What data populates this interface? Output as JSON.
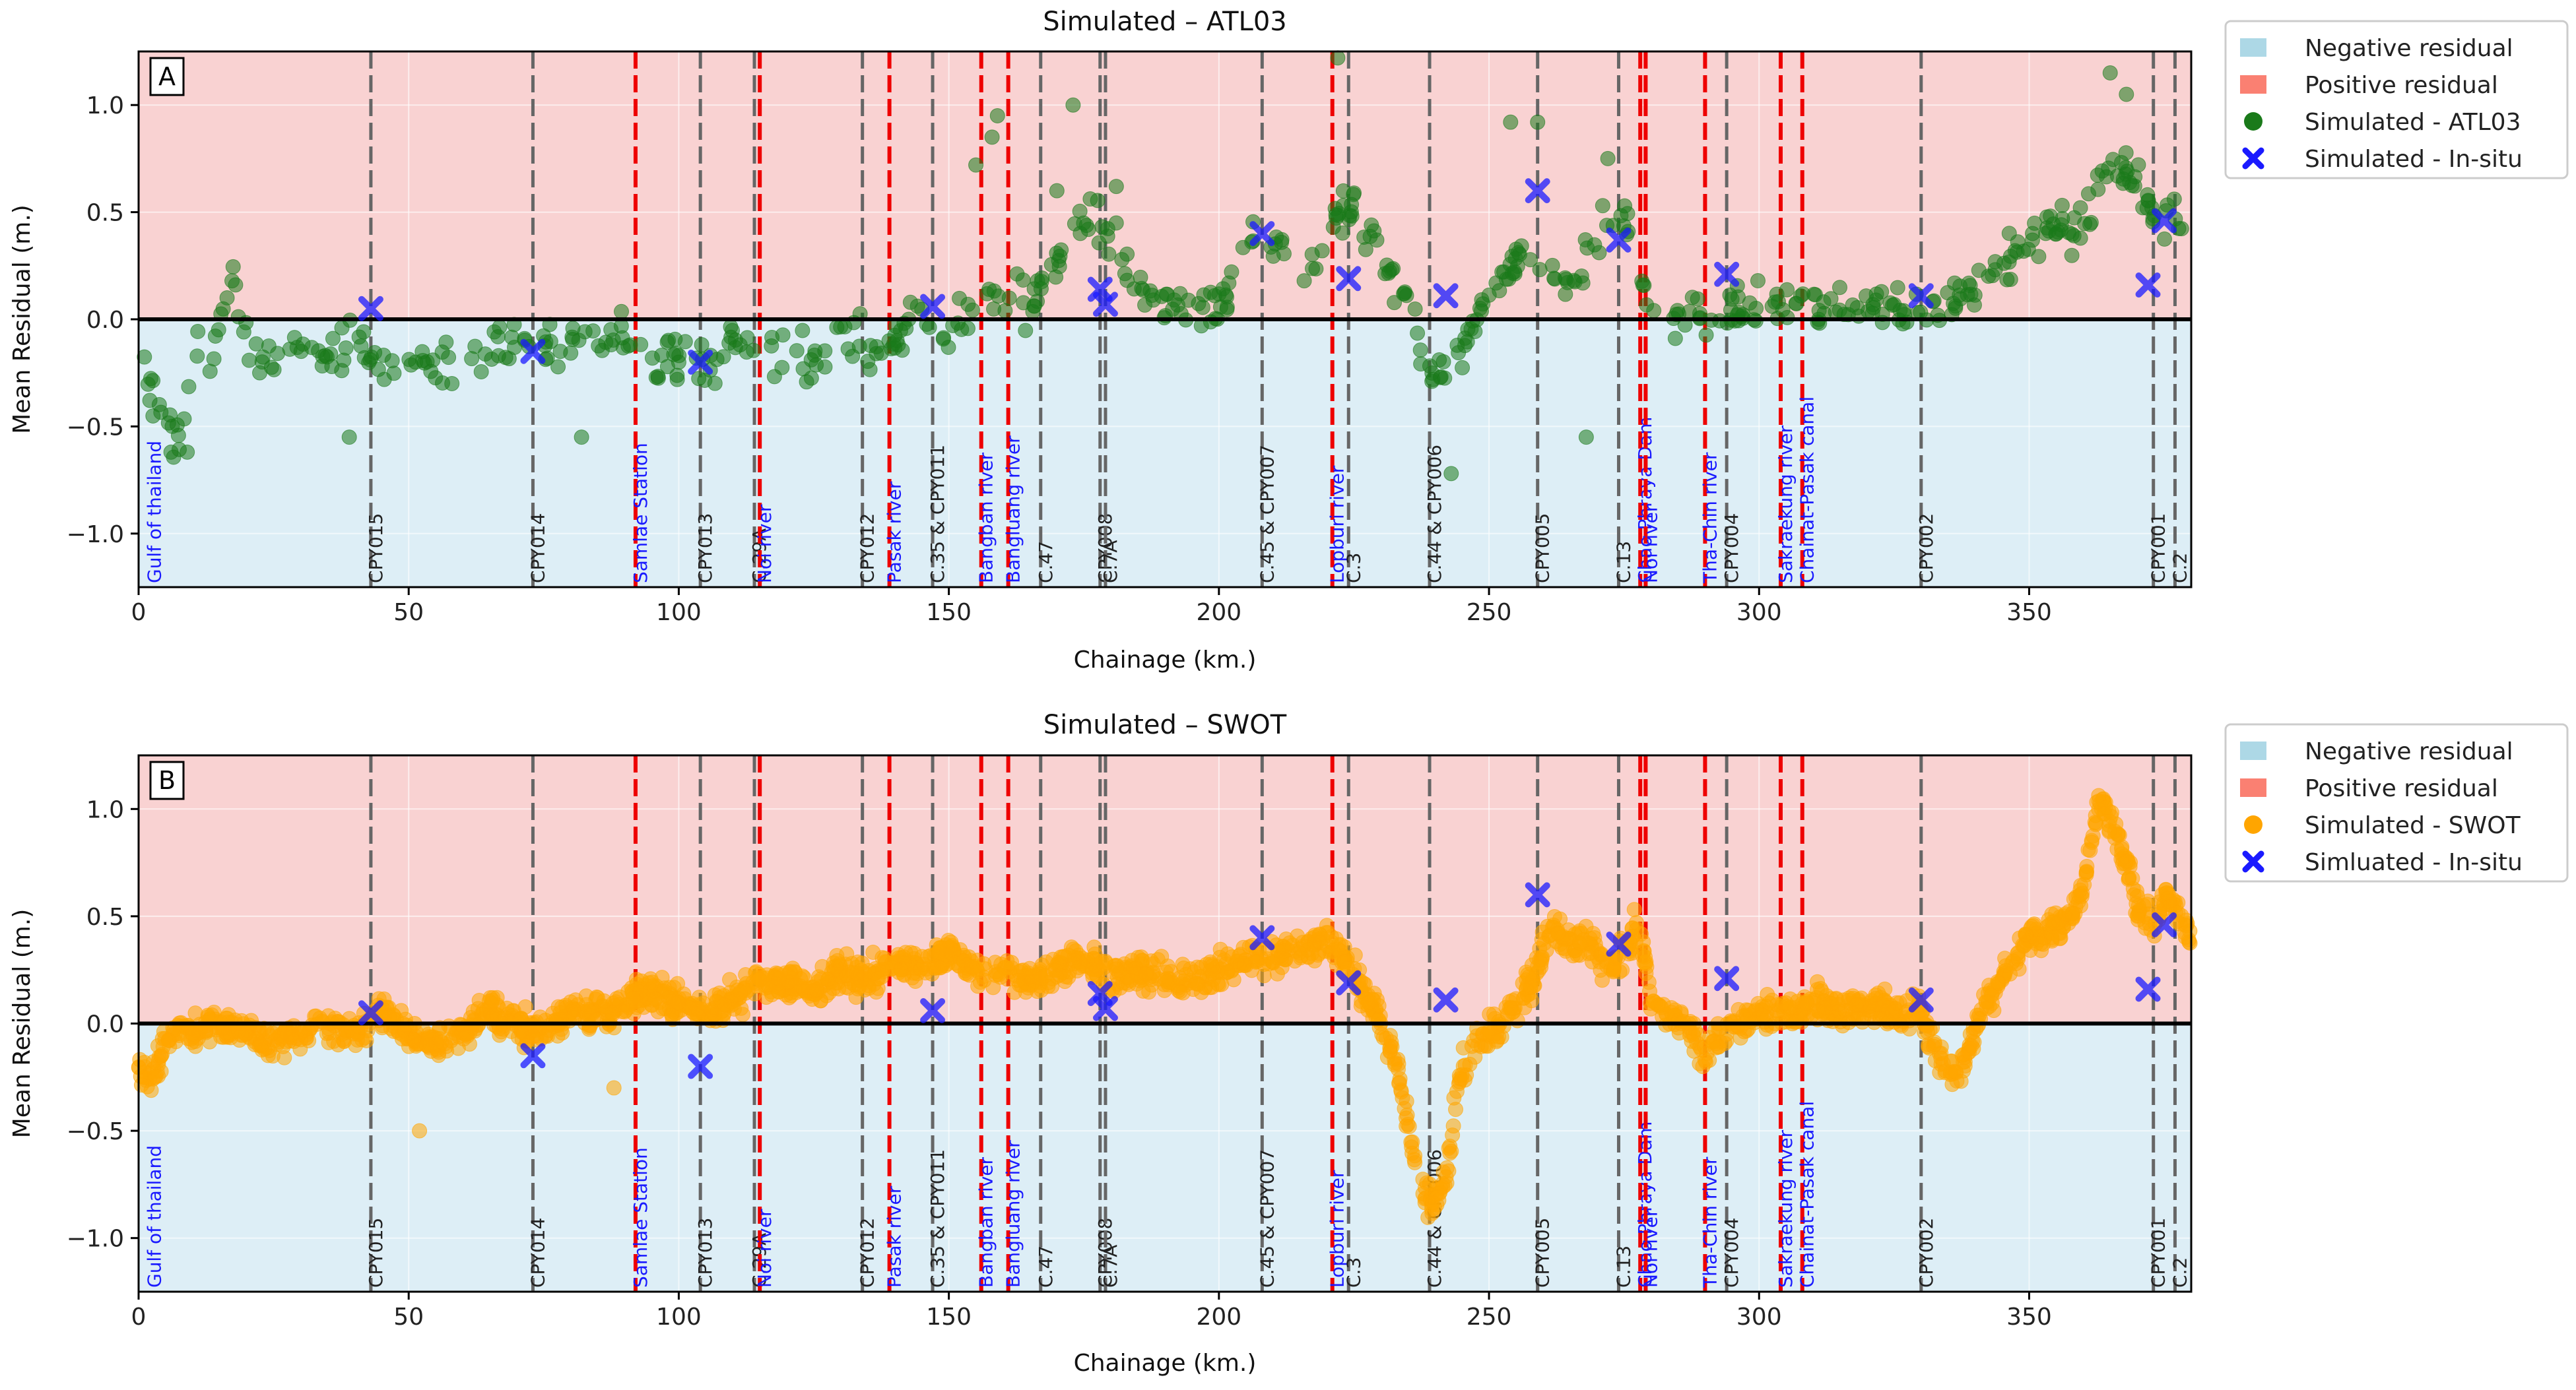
{
  "chart_data": [
    {
      "panel_label": "A",
      "type": "scatter",
      "title": "Simulated – ATL03",
      "xlabel": "Chainage (km.)",
      "ylabel": "Mean Residual (m.)",
      "xlim": [
        0,
        380
      ],
      "ylim": [
        -1.25,
        1.25
      ],
      "xticks": [
        0,
        50,
        100,
        150,
        200,
        250,
        300,
        350
      ],
      "yticks": [
        -1.0,
        -0.5,
        0.0,
        0.5,
        1.0
      ],
      "xtick_labels": [
        "0",
        "50",
        "100",
        "150",
        "200",
        "250",
        "300",
        "350"
      ],
      "ytick_labels": [
        "−1.0",
        "−0.5",
        "0.0",
        "0.5",
        "1.0"
      ],
      "grid": true,
      "legend": [
        "Negative residual",
        "Positive residual",
        "Simulated - ATL03",
        "Simulated - In-situ"
      ],
      "legend_position": "outside-right",
      "simulated_series": {
        "name": "Simulated - ATL03",
        "color": "#1a7a1a",
        "sparse": true,
        "anchors": [
          [
            1,
            -0.2
          ],
          [
            5,
            -0.52
          ],
          [
            8,
            -0.6
          ],
          [
            10,
            -0.15
          ],
          [
            14,
            -0.12
          ],
          [
            17,
            0.22
          ],
          [
            20,
            -0.1
          ],
          [
            25,
            -0.15
          ],
          [
            30,
            -0.1
          ],
          [
            35,
            -0.22
          ],
          [
            40,
            -0.1
          ],
          [
            45,
            -0.2
          ],
          [
            50,
            -0.2
          ],
          [
            55,
            -0.25
          ],
          [
            60,
            -0.18
          ],
          [
            65,
            -0.15
          ],
          [
            70,
            -0.1
          ],
          [
            73,
            -0.18
          ],
          [
            78,
            -0.12
          ],
          [
            85,
            -0.1
          ],
          [
            90,
            -0.1
          ],
          [
            95,
            -0.2
          ],
          [
            100,
            -0.15
          ],
          [
            105,
            -0.2
          ],
          [
            110,
            -0.15
          ],
          [
            115,
            -0.2
          ],
          [
            120,
            -0.15
          ],
          [
            125,
            -0.2
          ],
          [
            130,
            -0.05
          ],
          [
            135,
            -0.15
          ],
          [
            140,
            -0.1
          ],
          [
            145,
            0.05
          ],
          [
            150,
            -0.1
          ],
          [
            155,
            0.05
          ],
          [
            160,
            0.1
          ],
          [
            165,
            0.05
          ],
          [
            170,
            0.3
          ],
          [
            175,
            0.45
          ],
          [
            180,
            0.4
          ],
          [
            185,
            0.15
          ],
          [
            190,
            0.05
          ],
          [
            200,
            0.05
          ],
          [
            205,
            0.35
          ],
          [
            210,
            0.38
          ],
          [
            215,
            0.15
          ],
          [
            220,
            0.38
          ],
          [
            225,
            0.55
          ],
          [
            230,
            0.3
          ],
          [
            235,
            0.1
          ],
          [
            240,
            -0.3
          ],
          [
            245,
            -0.15
          ],
          [
            250,
            0.1
          ],
          [
            255,
            0.25
          ],
          [
            260,
            0.3
          ],
          [
            265,
            0.1
          ],
          [
            270,
            0.4
          ],
          [
            275,
            0.5
          ],
          [
            280,
            0.05
          ],
          [
            290,
            0.05
          ],
          [
            300,
            0.05
          ],
          [
            310,
            0.08
          ],
          [
            320,
            0.08
          ],
          [
            330,
            0.05
          ],
          [
            340,
            0.15
          ],
          [
            350,
            0.4
          ],
          [
            360,
            0.45
          ],
          [
            365,
            0.75
          ],
          [
            370,
            0.6
          ],
          [
            375,
            0.45
          ],
          [
            380,
            0.5
          ]
        ],
        "outliers": [
          [
            173,
            1.0
          ],
          [
            181,
            0.62
          ],
          [
            222,
            1.22
          ],
          [
            254,
            0.92
          ],
          [
            259,
            0.92
          ],
          [
            272,
            0.75
          ],
          [
            365,
            1.15
          ],
          [
            368,
            1.05
          ],
          [
            6,
            -0.62
          ],
          [
            9,
            -0.62
          ],
          [
            39,
            -0.55
          ],
          [
            82,
            -0.55
          ],
          [
            243,
            -0.72
          ],
          [
            268,
            -0.55
          ],
          [
            58,
            -0.3
          ],
          [
            100,
            -0.2
          ],
          [
            158,
            0.85
          ],
          [
            159,
            0.95
          ],
          [
            170,
            0.6
          ],
          [
            155,
            0.72
          ]
        ]
      },
      "insitu_points": [
        [
          43,
          0.05
        ],
        [
          73,
          -0.15
        ],
        [
          104,
          -0.2
        ],
        [
          147,
          0.06
        ],
        [
          178,
          0.14
        ],
        [
          179,
          0.07
        ],
        [
          208,
          0.4
        ],
        [
          224,
          0.19
        ],
        [
          242,
          0.11
        ],
        [
          259,
          0.6
        ],
        [
          274,
          0.37
        ],
        [
          294,
          0.21
        ],
        [
          330,
          0.11
        ],
        [
          372,
          0.16
        ],
        [
          375,
          0.46
        ]
      ]
    },
    {
      "panel_label": "B",
      "type": "scatter",
      "title": "Simulated – SWOT",
      "xlabel": "Chainage (km.)",
      "ylabel": "Mean Residual (m.)",
      "xlim": [
        0,
        380
      ],
      "ylim": [
        -1.25,
        1.25
      ],
      "xticks": [
        0,
        50,
        100,
        150,
        200,
        250,
        300,
        350
      ],
      "yticks": [
        -1.0,
        -0.5,
        0.0,
        0.5,
        1.0
      ],
      "xtick_labels": [
        "0",
        "50",
        "100",
        "150",
        "200",
        "250",
        "300",
        "350"
      ],
      "ytick_labels": [
        "−1.0",
        "−0.5",
        "0.0",
        "0.5",
        "1.0"
      ],
      "grid": true,
      "legend": [
        "Negative residual",
        "Positive residual",
        "Simulated - SWOT",
        "Simluated - In-situ"
      ],
      "legend_position": "outside-right",
      "simulated_series": {
        "name": "Simulated - SWOT",
        "color": "#ffa500",
        "sparse": false,
        "anchors": [
          [
            0,
            -0.2
          ],
          [
            3,
            -0.25
          ],
          [
            5,
            -0.05
          ],
          [
            10,
            -0.05
          ],
          [
            15,
            0.0
          ],
          [
            20,
            -0.05
          ],
          [
            25,
            -0.1
          ],
          [
            30,
            -0.05
          ],
          [
            35,
            0.0
          ],
          [
            40,
            -0.05
          ],
          [
            45,
            0.05
          ],
          [
            50,
            -0.05
          ],
          [
            55,
            -0.1
          ],
          [
            60,
            -0.05
          ],
          [
            65,
            0.05
          ],
          [
            70,
            0.0
          ],
          [
            75,
            -0.05
          ],
          [
            80,
            0.05
          ],
          [
            85,
            0.05
          ],
          [
            90,
            0.1
          ],
          [
            95,
            0.15
          ],
          [
            100,
            0.1
          ],
          [
            105,
            0.05
          ],
          [
            110,
            0.1
          ],
          [
            115,
            0.2
          ],
          [
            120,
            0.2
          ],
          [
            125,
            0.15
          ],
          [
            130,
            0.25
          ],
          [
            135,
            0.2
          ],
          [
            140,
            0.3
          ],
          [
            145,
            0.25
          ],
          [
            150,
            0.35
          ],
          [
            155,
            0.25
          ],
          [
            160,
            0.25
          ],
          [
            165,
            0.2
          ],
          [
            170,
            0.25
          ],
          [
            175,
            0.3
          ],
          [
            180,
            0.2
          ],
          [
            185,
            0.25
          ],
          [
            190,
            0.2
          ],
          [
            195,
            0.2
          ],
          [
            200,
            0.25
          ],
          [
            205,
            0.3
          ],
          [
            210,
            0.3
          ],
          [
            215,
            0.35
          ],
          [
            220,
            0.4
          ],
          [
            225,
            0.25
          ],
          [
            230,
            0.0
          ],
          [
            233,
            -0.2
          ],
          [
            236,
            -0.6
          ],
          [
            238,
            -0.8
          ],
          [
            240,
            -0.85
          ],
          [
            242,
            -0.7
          ],
          [
            245,
            -0.2
          ],
          [
            248,
            -0.1
          ],
          [
            252,
            0.0
          ],
          [
            255,
            0.1
          ],
          [
            258,
            0.2
          ],
          [
            262,
            0.45
          ],
          [
            265,
            0.35
          ],
          [
            268,
            0.4
          ],
          [
            272,
            0.25
          ],
          [
            275,
            0.3
          ],
          [
            278,
            0.5
          ],
          [
            280,
            0.1
          ],
          [
            285,
            0.0
          ],
          [
            288,
            -0.05
          ],
          [
            290,
            -0.15
          ],
          [
            295,
            0.0
          ],
          [
            300,
            0.05
          ],
          [
            305,
            0.05
          ],
          [
            310,
            0.1
          ],
          [
            315,
            0.05
          ],
          [
            320,
            0.1
          ],
          [
            325,
            0.05
          ],
          [
            330,
            0.05
          ],
          [
            333,
            -0.15
          ],
          [
            336,
            -0.25
          ],
          [
            339,
            -0.1
          ],
          [
            342,
            0.1
          ],
          [
            346,
            0.25
          ],
          [
            350,
            0.4
          ],
          [
            355,
            0.45
          ],
          [
            358,
            0.5
          ],
          [
            360,
            0.65
          ],
          [
            363,
            1.05
          ],
          [
            366,
            0.9
          ],
          [
            368,
            0.75
          ],
          [
            370,
            0.55
          ],
          [
            373,
            0.45
          ],
          [
            376,
            0.6
          ],
          [
            380,
            0.4
          ]
        ],
        "outliers": [
          [
            52,
            -0.5
          ],
          [
            88,
            -0.3
          ],
          [
            226,
            0.25
          ],
          [
            228,
            0.1
          ]
        ]
      },
      "insitu_points": [
        [
          43,
          0.05
        ],
        [
          73,
          -0.15
        ],
        [
          104,
          -0.2
        ],
        [
          147,
          0.06
        ],
        [
          178,
          0.14
        ],
        [
          179,
          0.07
        ],
        [
          208,
          0.4
        ],
        [
          224,
          0.19
        ],
        [
          242,
          0.11
        ],
        [
          259,
          0.6
        ],
        [
          274,
          0.37
        ],
        [
          294,
          0.21
        ],
        [
          330,
          0.11
        ],
        [
          372,
          0.16
        ],
        [
          375,
          0.46
        ]
      ]
    }
  ],
  "reference_lines": [
    {
      "x": 2,
      "style": "none",
      "label": "Gulf of thailand",
      "label_color": "blue"
    },
    {
      "x": 43,
      "style": "gray",
      "label": "CPY015",
      "label_color": "black"
    },
    {
      "x": 73,
      "style": "gray",
      "label": "CPY014",
      "label_color": "black"
    },
    {
      "x": 92,
      "style": "red",
      "label": "Samlae Station",
      "label_color": "blue"
    },
    {
      "x": 104,
      "style": "gray",
      "label": "CPY013",
      "label_color": "black"
    },
    {
      "x": 114,
      "style": "gray",
      "label": "C.29A",
      "label_color": "black"
    },
    {
      "x": 115,
      "style": "red",
      "label": "Noi river",
      "label_color": "blue"
    },
    {
      "x": 134,
      "style": "gray",
      "label": "CPY012",
      "label_color": "black"
    },
    {
      "x": 139,
      "style": "red",
      "label": "Pasak river",
      "label_color": "blue"
    },
    {
      "x": 147,
      "style": "gray",
      "label": "C.35 & CPY011",
      "label_color": "black"
    },
    {
      "x": 156,
      "style": "red",
      "label": "Bangban river",
      "label_color": "blue"
    },
    {
      "x": 161,
      "style": "red",
      "label": "Bangluang river",
      "label_color": "blue"
    },
    {
      "x": 167,
      "style": "gray",
      "label": "C.47",
      "label_color": "black"
    },
    {
      "x": 178,
      "style": "gray",
      "label": "CPY008",
      "label_color": "black"
    },
    {
      "x": 179,
      "style": "gray",
      "label": "C.7A",
      "label_color": "black"
    },
    {
      "x": 208,
      "style": "gray",
      "label": "C.45 & CPY007",
      "label_color": "black"
    },
    {
      "x": 221,
      "style": "red",
      "label": "Lopburi river",
      "label_color": "blue"
    },
    {
      "x": 224,
      "style": "gray",
      "label": "C.3",
      "label_color": "black"
    },
    {
      "x": 239,
      "style": "gray",
      "label": "C.44 & CPY006",
      "label_color": "black"
    },
    {
      "x": 259,
      "style": "gray",
      "label": "CPY005",
      "label_color": "black"
    },
    {
      "x": 274,
      "style": "gray",
      "label": "C.13",
      "label_color": "black"
    },
    {
      "x": 278,
      "style": "red",
      "label": "Chao Phraya Dam",
      "label_color": "blue"
    },
    {
      "x": 279,
      "style": "red",
      "label": "Noi river",
      "label_color": "blue"
    },
    {
      "x": 290,
      "style": "red",
      "label": "Tha-Chin river",
      "label_color": "blue"
    },
    {
      "x": 294,
      "style": "gray",
      "label": "CPY004",
      "label_color": "black"
    },
    {
      "x": 304,
      "style": "red",
      "label": "Sakraekung river",
      "label_color": "blue"
    },
    {
      "x": 308,
      "style": "red",
      "label": "Chainat-Pasak canal",
      "label_color": "blue"
    },
    {
      "x": 330,
      "style": "gray",
      "label": "CPY002",
      "label_color": "black"
    },
    {
      "x": 373,
      "style": "gray",
      "label": "CPY001",
      "label_color": "black"
    },
    {
      "x": 377,
      "style": "gray",
      "label": "C.2",
      "label_color": "black"
    }
  ],
  "colors": {
    "negative_band": "#ddeef6",
    "positive_band": "#f9d2d2",
    "legend_negative": "#add8e6",
    "legend_positive": "#fa8072",
    "atl03": "#1a7a1a",
    "swot": "#ffa500",
    "insitu": "#1a1aff",
    "red_line": "#ee0000",
    "gray_line": "#666666",
    "label_blue": "#1a1aff"
  }
}
